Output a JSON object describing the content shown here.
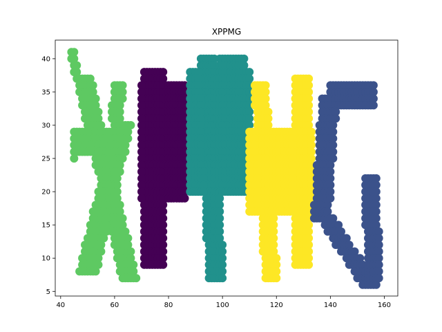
{
  "chart_data": {
    "type": "scatter",
    "title": "XPPMG",
    "xlabel": "",
    "ylabel": "",
    "xlim": [
      38,
      165
    ],
    "ylim": [
      4.3,
      42.8
    ],
    "x_ticks": [
      40,
      60,
      80,
      100,
      120,
      140,
      160
    ],
    "y_ticks": [
      5,
      10,
      15,
      20,
      25,
      30,
      35,
      40
    ],
    "grid": false,
    "point_size": 12,
    "series": [
      {
        "color": "#5ec962",
        "strokes": [
          {
            "y0": 41,
            "y1": 38,
            "x0": 44,
            "x1": 45,
            "w": 2,
            "step": 1
          },
          {
            "y0": 37,
            "y1": 7,
            "x0": 46,
            "x1": 63,
            "w": 6,
            "step": 1
          },
          {
            "y0": 30,
            "y1": 8,
            "x0": 60,
            "x1": 47,
            "w": 7,
            "step": 1
          },
          {
            "y0": 29,
            "y1": 27,
            "x0": 45,
            "x1": 45,
            "w": 16,
            "step": 1
          },
          {
            "y0": 26,
            "y1": 26,
            "x0": 45,
            "x1": 45,
            "w": 11,
            "step": 1
          },
          {
            "y0": 25,
            "y1": 25,
            "x0": 45,
            "x1": 45,
            "w": 1,
            "step": 1
          },
          {
            "y0": 36,
            "y1": 31,
            "x0": 60,
            "x1": 59,
            "w": 4,
            "step": 1
          }
        ]
      },
      {
        "color": "#440154",
        "strokes": [
          {
            "y0": 38,
            "y1": 9,
            "x0": 71,
            "x1": 71,
            "w": 8,
            "step": 1
          },
          {
            "y0": 36,
            "y1": 19,
            "x0": 70,
            "x1": 70,
            "w": 17,
            "step": 1
          },
          {
            "y0": 38,
            "y1": 33,
            "x0": 72,
            "x1": 72,
            "w": 6,
            "step": 1
          }
        ]
      },
      {
        "color": "#21918c",
        "strokes": [
          {
            "y0": 40,
            "y1": 7,
            "x0": 92,
            "x1": 95,
            "w": 6,
            "step": 1
          },
          {
            "y0": 38,
            "y1": 20,
            "x0": 88,
            "x1": 88,
            "w": 23,
            "step": 1
          },
          {
            "y0": 40,
            "y1": 36,
            "x0": 99,
            "x1": 99,
            "w": 10,
            "step": 1
          },
          {
            "y0": 31,
            "y1": 26,
            "x0": 100,
            "x1": 100,
            "w": 10,
            "step": 1
          }
        ]
      },
      {
        "color": "#fde725",
        "strokes": [
          {
            "y0": 36,
            "y1": 7,
            "x0": 112,
            "x1": 116,
            "w": 5,
            "step": 1
          },
          {
            "y0": 37,
            "y1": 9,
            "x0": 127,
            "x1": 127,
            "w": 6,
            "step": 1
          },
          {
            "y0": 29,
            "y1": 17,
            "x0": 110,
            "x1": 110,
            "w": 24,
            "step": 1
          }
        ]
      },
      {
        "color": "#3b528b",
        "strokes": [
          {
            "y0": 36,
            "y1": 33,
            "x0": 140,
            "x1": 140,
            "w": 17,
            "step": 1
          },
          {
            "y0": 34,
            "y1": 16,
            "x0": 137,
            "x1": 134,
            "w": 6,
            "step": 1
          },
          {
            "y0": 16,
            "y1": 6,
            "x0": 136,
            "x1": 152,
            "w": 6,
            "step": 1
          },
          {
            "y0": 22,
            "y1": 7,
            "x0": 153,
            "x1": 154,
            "w": 5,
            "step": 1
          }
        ]
      }
    ]
  }
}
